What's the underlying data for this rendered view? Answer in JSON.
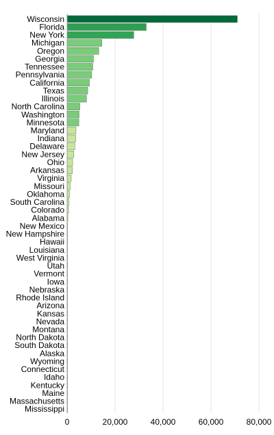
{
  "chart_data": {
    "type": "bar",
    "orientation": "horizontal",
    "categories": [
      "Wisconsin",
      "Florida",
      "New York",
      "Michigan",
      "Oregon",
      "Georgia",
      "Tennessee",
      "Pennsylvania",
      "California",
      "Texas",
      "Illinois",
      "North Carolina",
      "Washington",
      "Minnesota",
      "Maryland",
      "Indiana",
      "Delaware",
      "New Jersey",
      "Ohio",
      "Arkansas",
      "Virginia",
      "Missouri",
      "Oklahoma",
      "South Carolina",
      "Colorado",
      "Alabama",
      "New Mexico",
      "New Hampshire",
      "Hawaii",
      "Louisiana",
      "West Virginia",
      "Utah",
      "Vermont",
      "Iowa",
      "Nebraska",
      "Rhode Island",
      "Arizona",
      "Kansas",
      "Nevada",
      "Montana",
      "North Dakota",
      "South Dakota",
      "Alaska",
      "Wyoming",
      "Connecticut",
      "Idaho",
      "Kentucky",
      "Maine",
      "Massachusetts",
      "Mississippi"
    ],
    "values": [
      71000,
      33000,
      27800,
      14500,
      13200,
      11000,
      10700,
      10200,
      9300,
      8600,
      8100,
      5300,
      5000,
      4900,
      3700,
      3600,
      3200,
      2800,
      2300,
      2200,
      1700,
      1300,
      1000,
      800,
      600,
      300,
      80,
      60,
      50,
      50,
      40,
      40,
      30,
      30,
      30,
      20,
      20,
      20,
      20,
      10,
      10,
      10,
      10,
      10,
      10,
      5,
      5,
      5,
      5,
      5
    ],
    "bar_colors": [
      "#04693a",
      "#2e9e52",
      "#32a456",
      "#7acb7a",
      "#7acb7a",
      "#7acb7a",
      "#7acb7a",
      "#7acb7a",
      "#7acb7a",
      "#7acb7a",
      "#7acb7a",
      "#7acb7a",
      "#7acb7a",
      "#7acb7a",
      "#c8e59a",
      "#c8e59a",
      "#c8e59a",
      "#c8e59a",
      "#c8e59a",
      "#c8e59a",
      "#c8e59a",
      "#c8e59a",
      "#c8e59a",
      "#c8e59a",
      "#c8e59a",
      "#c8e59a",
      "#c8e59a",
      "#c8e59a",
      "#c8e59a",
      "#c8e59a",
      "#c8e59a",
      "#c8e59a",
      "#c8e59a",
      "#c8e59a",
      "#c8e59a",
      "#c8e59a",
      "#c8e59a",
      "#c8e59a",
      "#c8e59a",
      "#c8e59a",
      "#c8e59a",
      "#c8e59a",
      "#c8e59a",
      "#c8e59a",
      "#c8e59a",
      "#c8e59a",
      "#c8e59a",
      "#c8e59a",
      "#c8e59a",
      "#c8e59a"
    ],
    "xlim": [
      0,
      80000
    ],
    "xticks": [
      0,
      20000,
      40000,
      60000,
      80000
    ],
    "xtick_labels": [
      "0",
      "20,000",
      "40,000",
      "60,000",
      "80,000"
    ],
    "grid": true,
    "legend": false,
    "colors": {
      "grid": "#e6e6e6",
      "axis": "#999999",
      "bar_stroke": "#5f7a5f",
      "text": "#000000"
    }
  }
}
